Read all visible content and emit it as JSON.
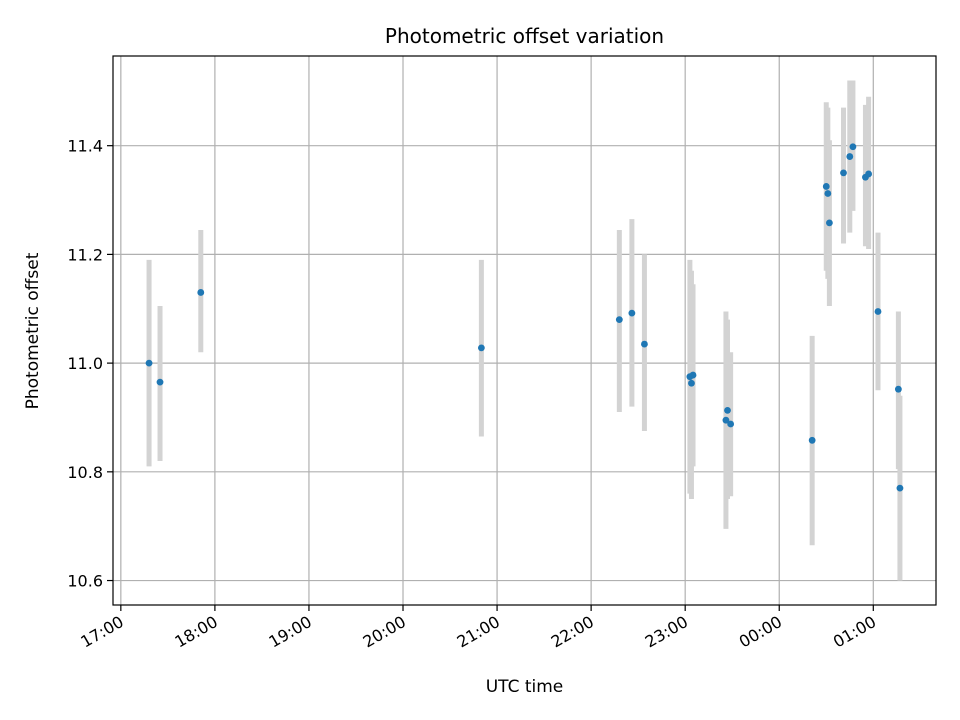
{
  "chart_data": {
    "type": "scatter",
    "title": "Photometric offset variation",
    "xlabel": "UTC time",
    "ylabel": "Photometric offset",
    "x_axis_kind": "time",
    "xlim": [
      "16:55",
      "25:40"
    ],
    "ylim": [
      10.555,
      11.565
    ],
    "x_ticks": [
      "17:00",
      "18:00",
      "19:00",
      "20:00",
      "21:00",
      "22:00",
      "23:00",
      "00:00",
      "01:00"
    ],
    "x_tick_values": [
      "17:00",
      "18:00",
      "19:00",
      "20:00",
      "21:00",
      "22:00",
      "23:00",
      "24:00",
      "25:00"
    ],
    "y_ticks": [
      "10.6",
      "10.8",
      "11.0",
      "11.2",
      "11.4"
    ],
    "y_tick_values": [
      10.6,
      10.8,
      11.0,
      11.2,
      11.4
    ],
    "grid": true,
    "colors": {
      "point": "#1f77b4",
      "errorbar": "#d3d3d3"
    },
    "points": [
      {
        "t": "17:18",
        "y": 11.0,
        "ylow": 10.81,
        "yhigh": 11.19
      },
      {
        "t": "17:25",
        "y": 10.965,
        "ylow": 10.82,
        "yhigh": 11.105
      },
      {
        "t": "17:51",
        "y": 11.13,
        "ylow": 11.02,
        "yhigh": 11.245
      },
      {
        "t": "20:50",
        "y": 11.028,
        "ylow": 10.865,
        "yhigh": 11.19
      },
      {
        "t": "22:18",
        "y": 11.08,
        "ylow": 10.91,
        "yhigh": 11.245
      },
      {
        "t": "22:26",
        "y": 11.092,
        "ylow": 10.92,
        "yhigh": 11.265
      },
      {
        "t": "22:34",
        "y": 11.035,
        "ylow": 10.875,
        "yhigh": 11.2
      },
      {
        "t": "23:03",
        "y": 10.975,
        "ylow": 10.76,
        "yhigh": 11.19
      },
      {
        "t": "23:04",
        "y": 10.963,
        "ylow": 10.75,
        "yhigh": 11.17
      },
      {
        "t": "23:05",
        "y": 10.978,
        "ylow": 10.81,
        "yhigh": 11.145
      },
      {
        "t": "23:26",
        "y": 10.895,
        "ylow": 10.695,
        "yhigh": 11.095
      },
      {
        "t": "23:27",
        "y": 10.913,
        "ylow": 10.75,
        "yhigh": 11.08
      },
      {
        "t": "23:29",
        "y": 10.888,
        "ylow": 10.755,
        "yhigh": 11.02
      },
      {
        "t": "24:21",
        "y": 10.858,
        "ylow": 10.665,
        "yhigh": 11.05
      },
      {
        "t": "24:30",
        "y": 11.325,
        "ylow": 11.17,
        "yhigh": 11.48
      },
      {
        "t": "24:31",
        "y": 11.312,
        "ylow": 11.155,
        "yhigh": 11.47
      },
      {
        "t": "24:32",
        "y": 11.258,
        "ylow": 11.105,
        "yhigh": 11.41
      },
      {
        "t": "24:41",
        "y": 11.35,
        "ylow": 11.22,
        "yhigh": 11.47
      },
      {
        "t": "24:45",
        "y": 11.38,
        "ylow": 11.24,
        "yhigh": 11.52
      },
      {
        "t": "24:47",
        "y": 11.398,
        "ylow": 11.28,
        "yhigh": 11.52
      },
      {
        "t": "24:55",
        "y": 11.342,
        "ylow": 11.215,
        "yhigh": 11.475
      },
      {
        "t": "24:57",
        "y": 11.348,
        "ylow": 11.21,
        "yhigh": 11.49
      },
      {
        "t": "25:03",
        "y": 11.095,
        "ylow": 10.95,
        "yhigh": 11.24
      },
      {
        "t": "25:16",
        "y": 10.952,
        "ylow": 10.805,
        "yhigh": 11.095
      },
      {
        "t": "25:17",
        "y": 10.77,
        "ylow": 10.6,
        "yhigh": 10.94
      }
    ]
  }
}
